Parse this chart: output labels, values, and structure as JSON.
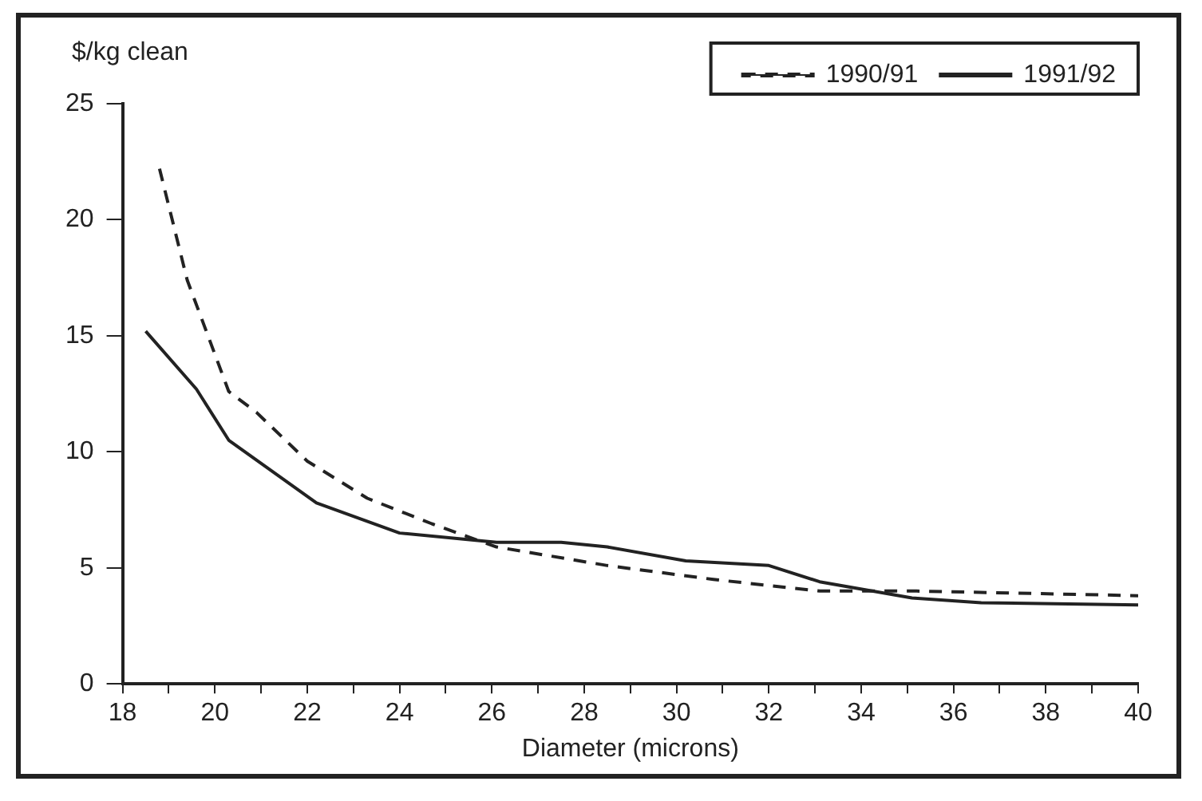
{
  "chart_data": {
    "type": "line",
    "ylabel": "$/kg clean",
    "xlabel": "Diameter (microns)",
    "xlim": [
      18,
      40
    ],
    "xticks": [
      18,
      {
        "value": 19,
        "label": null
      },
      20,
      {
        "value": 21,
        "label": null
      },
      22,
      {
        "value": 23,
        "label": null
      },
      24,
      {
        "value": 25,
        "label": null
      },
      26,
      {
        "value": 27,
        "label": null
      },
      28,
      {
        "value": 29,
        "label": null
      },
      30,
      {
        "value": 31,
        "label": null
      },
      32,
      {
        "value": 33,
        "label": null
      },
      34,
      {
        "value": 35,
        "label": null
      },
      36,
      {
        "value": 37,
        "label": null
      },
      38,
      {
        "value": 39,
        "label": null
      },
      40
    ],
    "ylim": [
      0,
      25
    ],
    "yticks": [
      0,
      5,
      10,
      15,
      20,
      25
    ],
    "grid": false,
    "legend": "top right",
    "marker": "none",
    "series": [
      {
        "name": "1990/91",
        "color": "#222222",
        "line_style": "dashed",
        "x": [
          18.8,
          19.4,
          20.3,
          20.9,
          22.0,
          23.3,
          24.7,
          26.1,
          28.5,
          30.8,
          33.1,
          35.2,
          40
        ],
        "values": [
          22.2,
          17.4,
          12.6,
          11.7,
          9.6,
          8.0,
          6.9,
          5.9,
          5.1,
          4.5,
          4.0,
          4.0,
          3.8
        ]
      },
      {
        "name": "1991/92",
        "color": "#222222",
        "line_style": "solid",
        "x": [
          18.5,
          19.6,
          20.3,
          22.2,
          24.0,
          26.1,
          27.5,
          28.5,
          30.2,
          32.0,
          33.1,
          35.1,
          36.6,
          40
        ],
        "values": [
          15.2,
          12.7,
          10.5,
          7.8,
          6.5,
          6.1,
          6.1,
          5.9,
          5.3,
          5.1,
          4.4,
          3.7,
          3.5,
          3.4
        ]
      }
    ]
  }
}
